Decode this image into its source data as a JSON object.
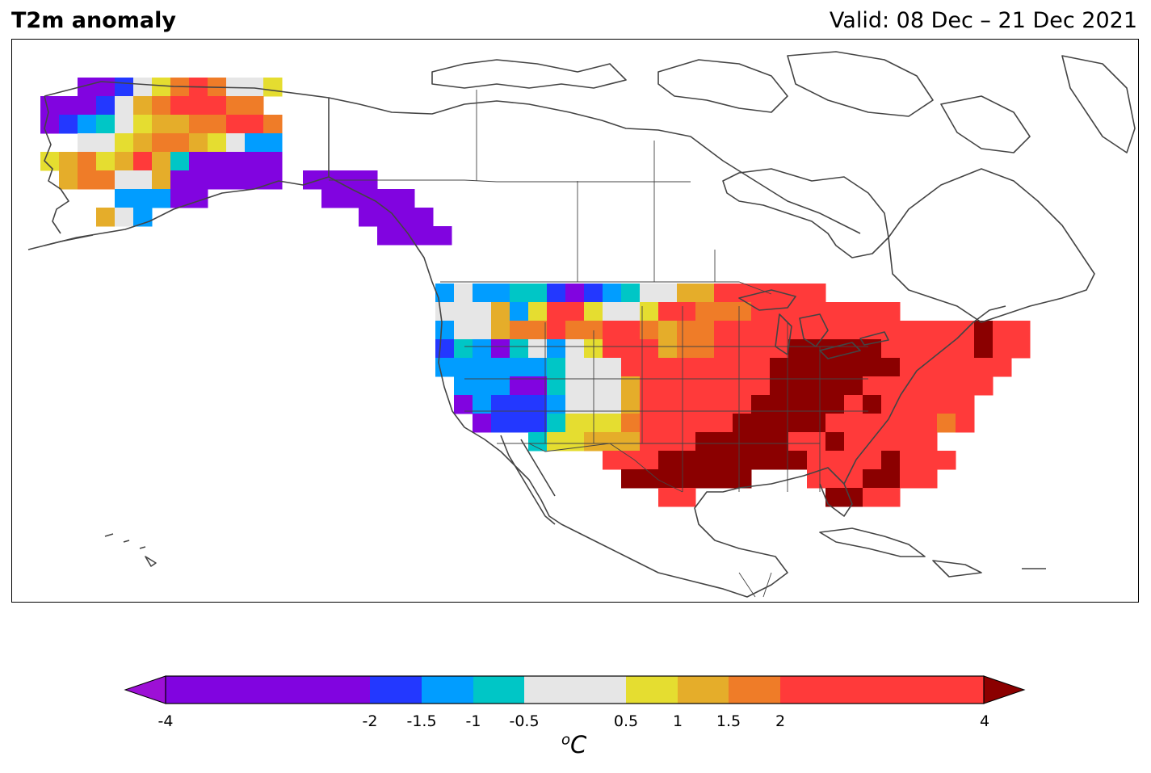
{
  "title": "T2m anomaly",
  "valid": "Valid: 08 Dec – 21 Dec 2021",
  "colorbar": {
    "unit_base": "C",
    "unit_sup": "o",
    "ticks": [
      "-4",
      "-2",
      "-1.5",
      "-1",
      "-0.5",
      "0.5",
      "1",
      "1.5",
      "2",
      "4"
    ],
    "bins": [
      {
        "range": "<-4",
        "color": "#9d10d6"
      },
      {
        "range": "-4..-2",
        "color": "#8104e0"
      },
      {
        "range": "-2..-1.5",
        "color": "#2338ff"
      },
      {
        "range": "-1.5..-1",
        "color": "#019dff"
      },
      {
        "range": "-1..-0.5",
        "color": "#00c6c6"
      },
      {
        "range": "-0.5..0.5",
        "color": "#e6e6e6"
      },
      {
        "range": "0.5..1",
        "color": "#e5dd30"
      },
      {
        "range": "1..1.5",
        "color": "#e5ad2a"
      },
      {
        "range": "1.5..2",
        "color": "#ef7c28"
      },
      {
        "range": "2..4",
        "color": "#ff3a3a"
      },
      {
        "range": ">4",
        "color": "#8b0000"
      }
    ]
  },
  "map": {
    "land_line_color": "#444444",
    "missing_color": "#ffffff"
  }
}
